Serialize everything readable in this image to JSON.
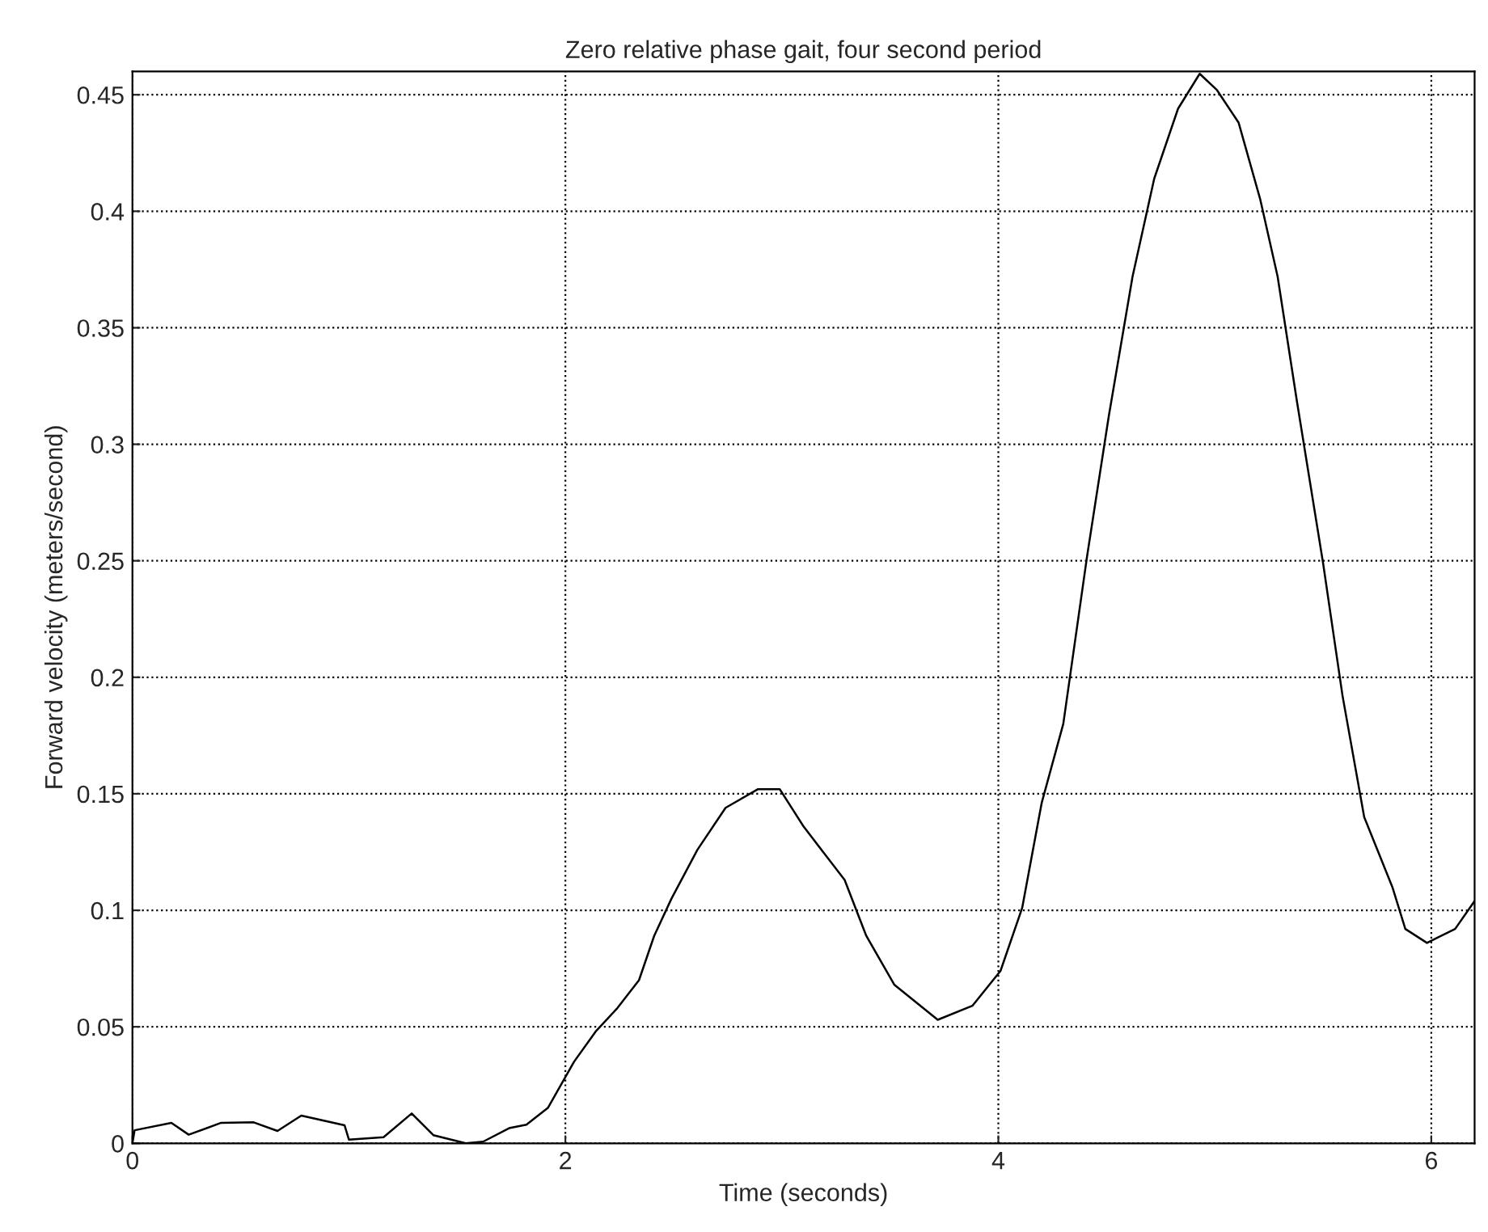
{
  "chart_data": {
    "type": "line",
    "title": "Zero relative phase gait, four second period",
    "xlabel": "Time (seconds)",
    "ylabel": "Forward velocity (meters/second)",
    "x": [
      0,
      0.01,
      0.18,
      0.26,
      0.41,
      0.56,
      0.67,
      0.78,
      0.98,
      1.0,
      1.16,
      1.29,
      1.39,
      1.54,
      1.62,
      1.74,
      1.82,
      1.92,
      2.04,
      2.14,
      2.24,
      2.34,
      2.41,
      2.49,
      2.61,
      2.74,
      2.89,
      2.99,
      3.1,
      3.29,
      3.39,
      3.52,
      3.72,
      3.88,
      4.01,
      4.11,
      4.2,
      4.3,
      4.41,
      4.51,
      4.62,
      4.72,
      4.83,
      4.93,
      5.01,
      5.11,
      5.21,
      5.29,
      5.38,
      5.5,
      5.59,
      5.69,
      5.82,
      5.88,
      5.98,
      6.11,
      6.2
    ],
    "series": [
      {
        "color": "#000000",
        "values": [
          0,
          0.0056,
          0.0088,
          0.0037,
          0.0088,
          0.009,
          0.0053,
          0.0119,
          0.0077,
          0.0016,
          0.0026,
          0.0128,
          0.0035,
          0,
          0.0007,
          0.0065,
          0.008,
          0.0153,
          0.035,
          0.048,
          0.058,
          0.07,
          0.089,
          0.105,
          0.126,
          0.144,
          0.152,
          0.152,
          0.136,
          0.113,
          0.089,
          0.068,
          0.053,
          0.059,
          0.074,
          0.101,
          0.146,
          0.18,
          0.252,
          0.312,
          0.372,
          0.414,
          0.444,
          0.459,
          0.452,
          0.438,
          0.405,
          0.372,
          0.318,
          0.249,
          0.192,
          0.14,
          0.11,
          0.092,
          0.086,
          0.092,
          0.104
        ]
      }
    ],
    "xlim": [
      0,
      6.2
    ],
    "ylim": [
      0,
      0.46
    ],
    "xticks": [
      0,
      2,
      4,
      6
    ],
    "yticks": [
      0,
      0.05,
      0.1,
      0.15,
      0.2,
      0.25,
      0.3,
      0.35,
      0.4,
      0.45
    ],
    "grid": true,
    "line_style": "solid"
  }
}
